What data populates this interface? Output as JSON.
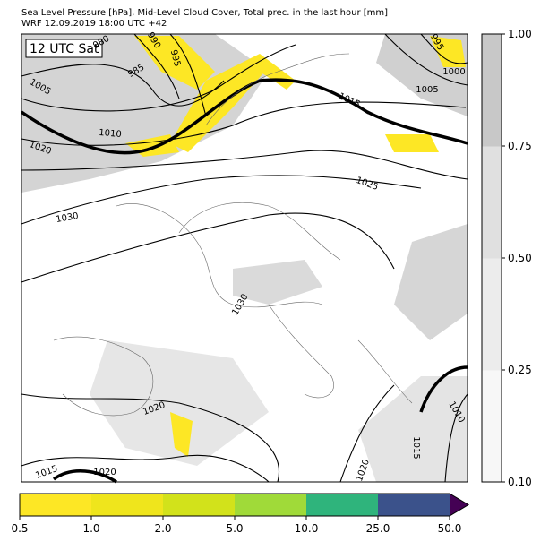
{
  "header": {
    "lines": [
      "Sea Level Pressure [hPa], Mid-Level Cloud Cover, Total prec. in the last hour [mm]",
      "WRF 12.09.2019 18:00 UTC +42"
    ]
  },
  "map": {
    "time_label": "12 UTC Sat",
    "contour_labels": [
      "980",
      "990",
      "995",
      "985",
      "1005",
      "1010",
      "1020",
      "1015",
      "1025",
      "1030",
      "1030",
      "995",
      "1000",
      "1005",
      "1020",
      "1015",
      "1020",
      "1020",
      "1015",
      "1010"
    ]
  },
  "precip_colorbar": {
    "colors": [
      "#fde725",
      "#efe51c",
      "#d2e21b",
      "#a0da39",
      "#2fb47c",
      "#3b528b"
    ],
    "extend_color": "#440154",
    "ticks": [
      {
        "value": 0.5,
        "label": "0.5"
      },
      {
        "value": 1,
        "label": "1.0"
      },
      {
        "value": 2,
        "label": "2.0"
      },
      {
        "value": 5,
        "label": "5.0"
      },
      {
        "value": 10,
        "label": "10.0"
      },
      {
        "value": 25,
        "label": "25.0"
      },
      {
        "value": 50,
        "label": "50.0"
      }
    ]
  },
  "cloud_colorbar": {
    "colors": [
      "#f7f7f7",
      "#ececec",
      "#e0e0e0",
      "#c8c8c8"
    ],
    "ticks": [
      {
        "value": 0.1,
        "label": "0.10"
      },
      {
        "value": 0.25,
        "label": "0.25"
      },
      {
        "value": 0.5,
        "label": "0.50"
      },
      {
        "value": 0.75,
        "label": "0.75"
      },
      {
        "value": 1,
        "label": "1.00"
      }
    ]
  }
}
